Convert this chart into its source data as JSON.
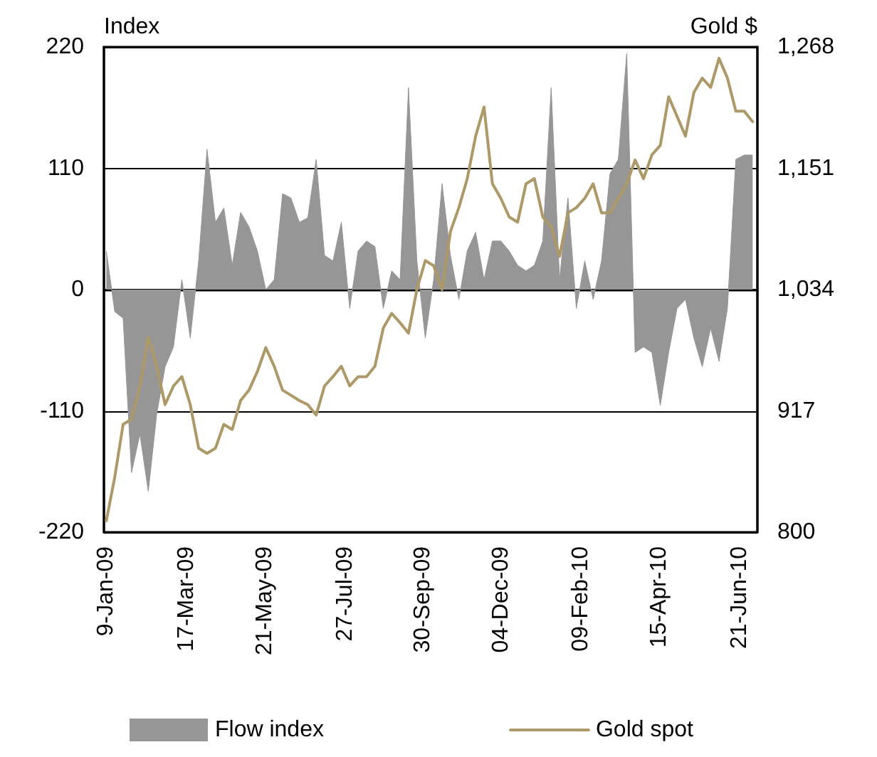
{
  "chart_data": {
    "type": "area",
    "ylabel": "Index",
    "y2label": "Gold $",
    "x": [
      "2009-01-09",
      "2009-01-16",
      "2009-01-23",
      "2009-01-30",
      "2009-02-06",
      "2009-02-13",
      "2009-02-20",
      "2009-02-27",
      "2009-03-06",
      "2009-03-13",
      "2009-03-20",
      "2009-03-27",
      "2009-04-03",
      "2009-04-10",
      "2009-04-17",
      "2009-04-24",
      "2009-05-01",
      "2009-05-08",
      "2009-05-15",
      "2009-05-22",
      "2009-05-29",
      "2009-06-05",
      "2009-06-12",
      "2009-06-19",
      "2009-06-26",
      "2009-07-03",
      "2009-07-10",
      "2009-07-17",
      "2009-07-24",
      "2009-07-31",
      "2009-08-07",
      "2009-08-14",
      "2009-08-21",
      "2009-08-28",
      "2009-09-04",
      "2009-09-11",
      "2009-09-18",
      "2009-09-25",
      "2009-10-02",
      "2009-10-09",
      "2009-10-16",
      "2009-10-23",
      "2009-10-30",
      "2009-11-06",
      "2009-11-13",
      "2009-11-20",
      "2009-11-27",
      "2009-12-04",
      "2009-12-11",
      "2009-12-18",
      "2009-12-25",
      "2010-01-01",
      "2010-01-08",
      "2010-01-15",
      "2010-01-22",
      "2010-01-29",
      "2010-02-05",
      "2010-02-12",
      "2010-02-19",
      "2010-02-26",
      "2010-03-05",
      "2010-03-12",
      "2010-03-19",
      "2010-03-26",
      "2010-04-02",
      "2010-04-09",
      "2010-04-16",
      "2010-04-23",
      "2010-04-30",
      "2010-05-07",
      "2010-05-14",
      "2010-05-21",
      "2010-05-28",
      "2010-06-04",
      "2010-06-11",
      "2010-06-18",
      "2010-06-25",
      "2010-07-02"
    ],
    "series": [
      {
        "name": "Flow index",
        "color": "#969696",
        "values": [
          35,
          -20,
          -26,
          -166,
          -131,
          -183,
          -113,
          -70,
          -52,
          9,
          -44,
          26,
          127,
          61,
          74,
          22,
          70,
          57,
          35,
          0,
          9,
          87,
          83,
          61,
          65,
          118,
          31,
          26,
          61,
          -17,
          35,
          44,
          39,
          -17,
          17,
          9,
          183,
          26,
          -44,
          9,
          96,
          31,
          -9,
          35,
          52,
          9,
          44,
          44,
          35,
          22,
          17,
          22,
          44,
          183,
          9,
          83,
          -17,
          26,
          -9,
          26,
          105,
          118,
          214,
          -57,
          -52,
          -57,
          -105,
          -57,
          -17,
          -9,
          -44,
          -70,
          -35,
          -65,
          -17,
          118,
          122,
          122
        ]
      },
      {
        "name": "Gold spot",
        "type": "line",
        "axis": "y2",
        "color": "#ad9968",
        "values": [
          811,
          853,
          904,
          909,
          941,
          988,
          960,
          923,
          941,
          950,
          923,
          881,
          876,
          881,
          904,
          899,
          927,
          937,
          955,
          978,
          960,
          937,
          932,
          927,
          923,
          913,
          941,
          950,
          960,
          941,
          950,
          950,
          960,
          997,
          1011,
          1002,
          992,
          1034,
          1062,
          1057,
          1034,
          1090,
          1113,
          1141,
          1182,
          1210,
          1136,
          1122,
          1104,
          1099,
          1136,
          1141,
          1104,
          1094,
          1066,
          1108,
          1113,
          1122,
          1136,
          1108,
          1108,
          1122,
          1136,
          1159,
          1141,
          1164,
          1173,
          1220,
          1201,
          1182,
          1224,
          1238,
          1229,
          1257,
          1238,
          1206,
          1206,
          1196
        ]
      }
    ],
    "xlim": [
      "2009-01-07",
      "2010-07-06"
    ],
    "xticks": [
      {
        "value": "2009-01-09",
        "label": "9-Jan-09"
      },
      {
        "value": "2009-03-17",
        "label": "17-Mar-09"
      },
      {
        "value": "2009-05-21",
        "label": "21-May-09"
      },
      {
        "value": "2009-07-27",
        "label": "27-Jul-09"
      },
      {
        "value": "2009-09-30",
        "label": "30-Sep-09"
      },
      {
        "value": "2009-12-04",
        "label": "04-Dec-09"
      },
      {
        "value": "2010-02-09",
        "label": "09-Feb-10"
      },
      {
        "value": "2010-04-15",
        "label": "15-Apr-10"
      },
      {
        "value": "2010-06-21",
        "label": "21-Jun-10"
      }
    ],
    "ylim": [
      -220,
      220
    ],
    "yticks": [
      -220,
      -110,
      0,
      110,
      220
    ],
    "y2lim": [
      800,
      1268
    ],
    "y2ticks": [
      800,
      917,
      {
        "value": 1034,
        "label": "1,034"
      },
      {
        "value": 1151,
        "label": "1,151"
      },
      {
        "value": 1268,
        "label": "1,268"
      }
    ],
    "grid": "y",
    "legend": "bottom",
    "marker": "none",
    "line_style": "solid"
  }
}
